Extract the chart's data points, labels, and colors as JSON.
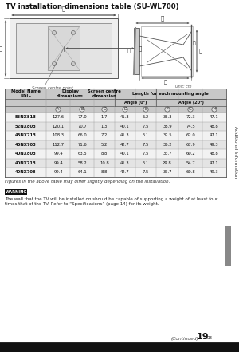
{
  "title": "TV installation dimensions table (SU-WL700)",
  "unit_note": "Unit: cm",
  "figure_note": "Figures in the above table may differ slightly depending on the installation.",
  "warning_label": "WARNING",
  "warning_text": "The wall that the TV will be installed on should be capable of supporting a weight of at least four\ntimes that of the TV. Refer to “Specifications” (page 14) for its weight.",
  "continued_text": "(Continued)",
  "page_number": "19",
  "page_suffix": "GB",
  "side_label": "Additional Information",
  "rows": [
    [
      "55NX813",
      "127.6",
      "77.0",
      "1.7",
      "41.3",
      "5.2",
      "36.3",
      "72.3",
      "47.1"
    ],
    [
      "52NX803",
      "120.1",
      "70.7",
      "1.3",
      "40.1",
      "7.5",
      "38.9",
      "74.5",
      "48.8"
    ],
    [
      "46NX713",
      "108.3",
      "66.0",
      "7.2",
      "41.3",
      "5.1",
      "32.5",
      "62.0",
      "47.1"
    ],
    [
      "46NX703",
      "112.7",
      "71.6",
      "5.2",
      "42.7",
      "7.5",
      "36.2",
      "67.9",
      "49.3"
    ],
    [
      "40NX803",
      "99.4",
      "63.5",
      "8.8",
      "40.1",
      "7.5",
      "33.7",
      "60.2",
      "48.8"
    ],
    [
      "40NX713",
      "99.4",
      "58.2",
      "10.8",
      "41.3",
      "5.1",
      "29.8",
      "54.7",
      "47.1"
    ],
    [
      "40NX703",
      "99.4",
      "64.1",
      "8.8",
      "42.7",
      "7.5",
      "33.7",
      "60.8",
      "49.3"
    ]
  ],
  "col_letters": [
    "A",
    "B",
    "C",
    "D",
    "E",
    "F",
    "G",
    "H"
  ],
  "bg_color": "#ffffff",
  "table_header_bg": "#c8c8c8",
  "row_colors": [
    "#f2f2f2",
    "#e4e4e4"
  ],
  "warning_bg": "#111111",
  "warning_fg": "#ffffff",
  "gray_bar_color": "#888888",
  "border_color": "#555555",
  "line_color": "#999999"
}
